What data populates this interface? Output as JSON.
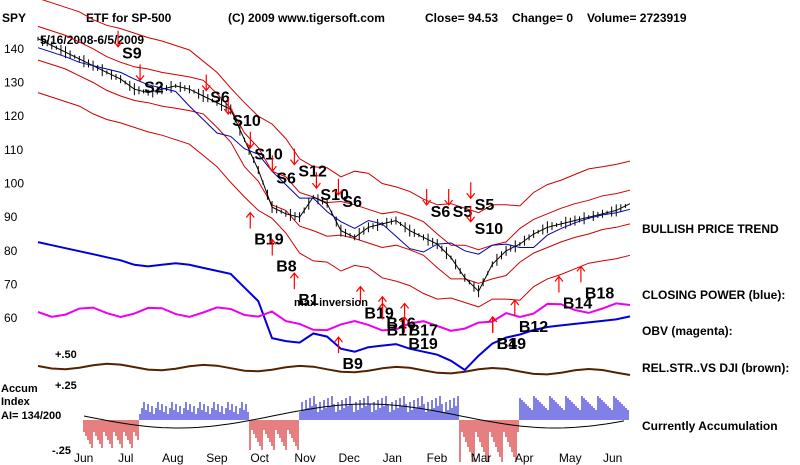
{
  "header": {
    "symbol": "SPY",
    "name": "ETF for SP-500",
    "copyright": "(C) 2009 www.tigersoft.com",
    "close": "Close=  94.53",
    "change": "Change= 0",
    "volume": "Volume= 2723919",
    "date_range": "5/16/2008-6/5/2009"
  },
  "chart_data": {
    "type": "line",
    "price_ticks": [
      "140",
      "130",
      "120",
      "110",
      "100",
      "90",
      "80",
      "70",
      "60"
    ],
    "price_tick_values": [
      140,
      130,
      120,
      110,
      100,
      90,
      80,
      70,
      60
    ],
    "ylim": [
      55,
      145
    ],
    "months": [
      "Jun",
      "Jul",
      "Aug",
      "Sep",
      "Oct",
      "Nov",
      "Dec",
      "Jan",
      "Feb",
      "Mar",
      "Apr",
      "May",
      "Jun"
    ],
    "price_series": {
      "name": "SPY",
      "values": [
        143,
        141,
        139,
        137,
        135,
        133,
        131,
        128,
        127,
        128,
        129,
        128,
        126,
        124,
        122,
        113,
        104,
        93,
        91,
        90,
        96,
        94,
        86,
        84,
        87,
        88,
        89,
        86,
        84,
        82,
        78,
        72,
        68,
        76,
        80,
        82,
        85,
        87,
        88,
        89,
        90,
        91,
        92,
        94
      ]
    },
    "signals": [
      {
        "label": "S9",
        "kind": "sell",
        "month": "Jul",
        "price": 143
      },
      {
        "label": "S2",
        "kind": "sell",
        "month": "Jul",
        "price": 133
      },
      {
        "label": "S6",
        "kind": "sell",
        "month": "Sep",
        "price": 130
      },
      {
        "label": "S10",
        "kind": "sell",
        "month": "Sep",
        "price": 123
      },
      {
        "label": "S10",
        "kind": "sell",
        "month": "Oct",
        "price": 113
      },
      {
        "label": "S6",
        "kind": "sell",
        "month": "Oct",
        "price": 106
      },
      {
        "label": "S12",
        "kind": "sell",
        "month": "Nov",
        "price": 108
      },
      {
        "label": "S10",
        "kind": "sell",
        "month": "Nov",
        "price": 101
      },
      {
        "label": "S6",
        "kind": "sell",
        "month": "Nov",
        "price": 99
      },
      {
        "label": "S6",
        "kind": "sell",
        "month": "Feb",
        "price": 96
      },
      {
        "label": "S5",
        "kind": "sell",
        "month": "Feb",
        "price": 96
      },
      {
        "label": "S10",
        "kind": "sell",
        "month": "Feb",
        "price": 91
      },
      {
        "label": "S5",
        "kind": "sell",
        "month": "Mar",
        "price": 98
      },
      {
        "label": "B19",
        "kind": "buy",
        "month": "Sep",
        "price": 89
      },
      {
        "label": "B8",
        "kind": "buy",
        "month": "Sep",
        "price": 81
      },
      {
        "label": "B1",
        "kind": "buy",
        "month": "Oct",
        "price": 71
      },
      {
        "label": "B19",
        "kind": "buy",
        "month": "Nov",
        "price": 67
      },
      {
        "label": "B16",
        "kind": "buy",
        "month": "Nov",
        "price": 64
      },
      {
        "label": "B19",
        "kind": "buy",
        "month": "Nov",
        "price": 58
      },
      {
        "label": "B9",
        "kind": "buy",
        "month": "Dec",
        "price": 52
      },
      {
        "label": "B17",
        "kind": "buy",
        "month": "Jan",
        "price": 62
      },
      {
        "label": "B17",
        "kind": "buy",
        "month": "Jan",
        "price": 62
      },
      {
        "label": "B19",
        "kind": "buy",
        "month": "Feb",
        "price": 58
      },
      {
        "label": "B4",
        "kind": "buy",
        "month": "Mar",
        "price": 58
      },
      {
        "label": "B12",
        "kind": "buy",
        "month": "Apr",
        "price": 63
      },
      {
        "label": "B14",
        "kind": "buy",
        "month": "May",
        "price": 70
      },
      {
        "label": "B18",
        "kind": "buy",
        "month": "May",
        "price": 73
      }
    ],
    "annotations": {
      "max_inversion": "max inversion"
    },
    "panel_labels": {
      "bullish_trend": "BULLISH PRICE TREND",
      "closing_power": "CLOSING POWER (blue):",
      "obv": "OBV (magenta):",
      "rel_str": "REL.STR..VS DJI (brown):",
      "currently": "Currently Accumulation"
    },
    "rel_str_ticks": [
      "+.50",
      "+.25",
      "-.25"
    ],
    "accum": {
      "title_line1": "Accum",
      "title_line2": "Index",
      "reading": "AI= 134/200"
    },
    "colors": {
      "price": "#000000",
      "bands": "#cc0000",
      "closing_power": "#0000dd",
      "obv": "#ee00ee",
      "rel_str": "#552200",
      "accum_pos": "#0000cc",
      "accum_neg": "#cc0000",
      "buy_arrow": "#ff0000",
      "sell_arrow": "#ff0000"
    }
  }
}
